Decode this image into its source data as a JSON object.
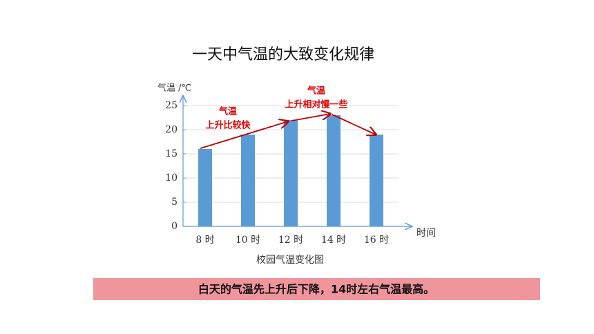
{
  "chart_data": {
    "type": "bar",
    "title": "一天中气温的大致变化规律",
    "y_label": "气温 /℃",
    "x_label": "时间",
    "caption": "校园气温变化图",
    "categories": [
      "8 时",
      "10 时",
      "12 时",
      "14 时",
      "16 时"
    ],
    "values": [
      16,
      19,
      22,
      23,
      19
    ],
    "color": "#5b9bd5",
    "ylim": [
      0,
      25
    ],
    "yticks": [
      0,
      5,
      10,
      15,
      20,
      25
    ],
    "grid": true,
    "annotations": [
      [
        "气温",
        "上升比较快"
      ],
      [
        "气温",
        "上升相对慢一些"
      ]
    ],
    "conclusion": "白天的气温先上升后下降，14时左右气温最高。"
  }
}
